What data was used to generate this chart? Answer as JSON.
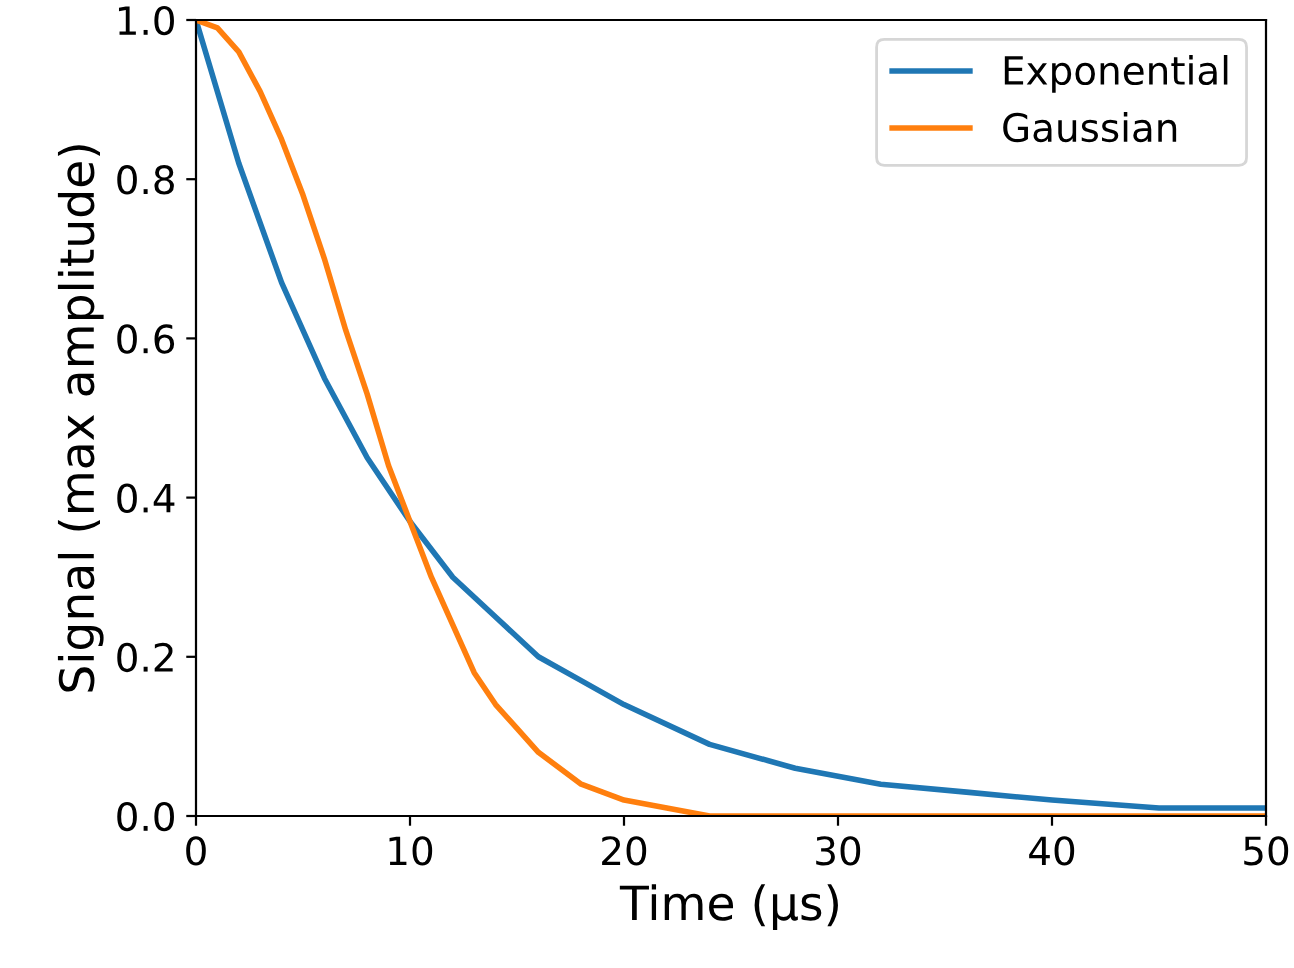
{
  "chart_data": {
    "type": "line",
    "xlabel": "Time (μs)",
    "ylabel": "Signal (max amplitude)",
    "xlim": [
      0,
      50
    ],
    "ylim": [
      0,
      1
    ],
    "xticks": [
      0,
      10,
      20,
      30,
      40,
      50
    ],
    "yticks": [
      {
        "value": 0,
        "label": "0.0"
      },
      {
        "value": 0.2,
        "label": "0.2"
      },
      {
        "value": 0.4,
        "label": "0.4"
      },
      {
        "value": 0.6,
        "label": "0.6"
      },
      {
        "value": 0.8,
        "label": "0.8"
      },
      {
        "value": 1,
        "label": "1.0"
      }
    ],
    "grid": false,
    "legend": "top right",
    "marker": "none",
    "line_style": "solid",
    "series": [
      {
        "name": "Exponential",
        "color": "#1f77b4",
        "x": [
          0,
          2,
          4,
          6,
          8,
          10,
          12,
          14,
          16,
          18,
          20,
          24,
          28,
          32,
          36,
          40,
          45,
          50
        ],
        "values": [
          1,
          0.82,
          0.67,
          0.55,
          0.45,
          0.37,
          0.3,
          0.25,
          0.2,
          0.17,
          0.14,
          0.09,
          0.06,
          0.04,
          0.03,
          0.02,
          0.01,
          0.01
        ]
      },
      {
        "name": "Gaussian",
        "color": "#ff7f0e",
        "x": [
          0,
          1,
          2,
          3,
          4,
          5,
          6,
          7,
          8,
          9,
          10,
          11,
          12,
          13,
          14,
          15,
          16,
          17,
          18,
          19,
          20,
          22,
          24,
          30,
          40,
          50
        ],
        "values": [
          1,
          0.99,
          0.96,
          0.91,
          0.85,
          0.78,
          0.7,
          0.61,
          0.53,
          0.44,
          0.37,
          0.3,
          0.24,
          0.18,
          0.14,
          0.11,
          0.08,
          0.06,
          0.04,
          0.03,
          0.02,
          0.01,
          0,
          0,
          0,
          0
        ]
      }
    ]
  }
}
